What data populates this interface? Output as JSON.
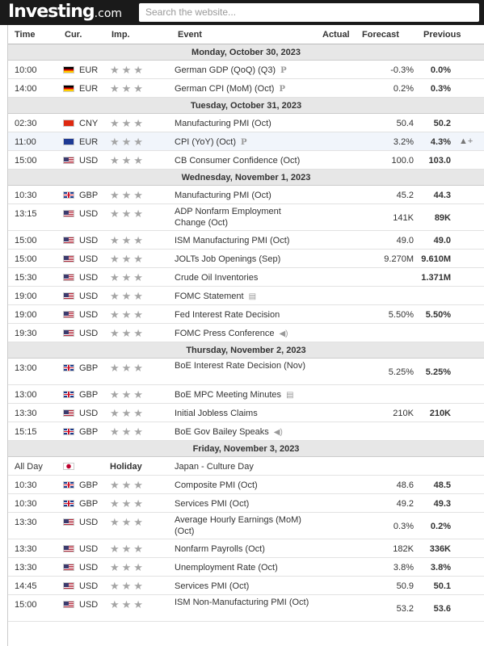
{
  "header": {
    "logo_main": "Investing",
    "logo_suffix": ".com",
    "search_placeholder": "Search the website..."
  },
  "columns": {
    "time": "Time",
    "currency": "Cur.",
    "importance": "Imp.",
    "event": "Event",
    "actual": "Actual",
    "forecast": "Forecast",
    "previous": "Previous"
  },
  "days": [
    {
      "date": "Monday, October 30, 2023",
      "rows": [
        {
          "time": "10:00",
          "flag": "de",
          "cur": "EUR",
          "stars": "★★★",
          "event": "German GDP (QoQ) (Q3)",
          "icon": "P",
          "actual": "",
          "forecast": "-0.3%",
          "previous": "0.0%"
        },
        {
          "time": "14:00",
          "flag": "de",
          "cur": "EUR",
          "stars": "★★★",
          "event": "German CPI (MoM) (Oct)",
          "icon": "P",
          "actual": "",
          "forecast": "0.2%",
          "previous": "0.3%"
        }
      ]
    },
    {
      "date": "Tuesday, October 31, 2023",
      "rows": [
        {
          "time": "02:30",
          "flag": "cn",
          "cur": "CNY",
          "stars": "★★★",
          "event": "Manufacturing PMI (Oct)",
          "icon": "",
          "actual": "",
          "forecast": "50.4",
          "previous": "50.2"
        },
        {
          "time": "11:00",
          "flag": "eu",
          "cur": "EUR",
          "stars": "★★★",
          "event": "CPI (YoY) (Oct)",
          "icon": "P",
          "actual": "",
          "forecast": "3.2%",
          "previous": "4.3%",
          "highlight": true,
          "alert": "▲+"
        },
        {
          "time": "15:00",
          "flag": "us",
          "cur": "USD",
          "stars": "★★★",
          "event": "CB Consumer Confidence (Oct)",
          "icon": "",
          "actual": "",
          "forecast": "100.0",
          "previous": "103.0"
        }
      ]
    },
    {
      "date": "Wednesday, November 1, 2023",
      "rows": [
        {
          "time": "10:30",
          "flag": "gb",
          "cur": "GBP",
          "stars": "★★★",
          "event": "Manufacturing PMI (Oct)",
          "icon": "",
          "actual": "",
          "forecast": "45.2",
          "previous": "44.3"
        },
        {
          "time": "13:15",
          "flag": "us",
          "cur": "USD",
          "stars": "★★★",
          "event": "ADP Nonfarm Employment Change (Oct)",
          "icon": "",
          "actual": "",
          "forecast": "141K",
          "previous": "89K",
          "tall": true
        },
        {
          "time": "15:00",
          "flag": "us",
          "cur": "USD",
          "stars": "★★★",
          "event": "ISM Manufacturing PMI (Oct)",
          "icon": "",
          "actual": "",
          "forecast": "49.0",
          "previous": "49.0"
        },
        {
          "time": "15:00",
          "flag": "us",
          "cur": "USD",
          "stars": "★★★",
          "event": "JOLTs Job Openings (Sep)",
          "icon": "",
          "actual": "",
          "forecast": "9.270M",
          "previous": "9.610M"
        },
        {
          "time": "15:30",
          "flag": "us",
          "cur": "USD",
          "stars": "★★★",
          "event": "Crude Oil Inventories",
          "icon": "",
          "actual": "",
          "forecast": "",
          "previous": "1.371M"
        },
        {
          "time": "19:00",
          "flag": "us",
          "cur": "USD",
          "stars": "★★★",
          "event": "FOMC Statement",
          "icon": "▤",
          "actual": "",
          "forecast": "",
          "previous": ""
        },
        {
          "time": "19:00",
          "flag": "us",
          "cur": "USD",
          "stars": "★★★",
          "event": "Fed Interest Rate Decision",
          "icon": "",
          "actual": "",
          "forecast": "5.50%",
          "previous": "5.50%"
        },
        {
          "time": "19:30",
          "flag": "us",
          "cur": "USD",
          "stars": "★★★",
          "event": "FOMC Press Conference",
          "icon": "◀)",
          "actual": "",
          "forecast": "",
          "previous": ""
        }
      ]
    },
    {
      "date": "Thursday, November 2, 2023",
      "rows": [
        {
          "time": "13:00",
          "flag": "gb",
          "cur": "GBP",
          "stars": "★★★",
          "event": "BoE Interest Rate Decision (Nov)",
          "icon": "",
          "actual": "",
          "forecast": "5.25%",
          "previous": "5.25%",
          "tall": true
        },
        {
          "time": "13:00",
          "flag": "gb",
          "cur": "GBP",
          "stars": "★★★",
          "event": "BoE MPC Meeting Minutes",
          "icon": "▤",
          "actual": "",
          "forecast": "",
          "previous": ""
        },
        {
          "time": "13:30",
          "flag": "us",
          "cur": "USD",
          "stars": "★★★",
          "event": "Initial Jobless Claims",
          "icon": "",
          "actual": "",
          "forecast": "210K",
          "previous": "210K"
        },
        {
          "time": "15:15",
          "flag": "gb",
          "cur": "GBP",
          "stars": "★★★",
          "event": "BoE Gov Bailey Speaks",
          "icon": "◀)",
          "actual": "",
          "forecast": "",
          "previous": ""
        }
      ]
    },
    {
      "date": "Friday, November 3, 2023",
      "rows": [
        {
          "time": "All Day",
          "flag": "jp",
          "cur": "",
          "stars": "",
          "holiday": "Holiday",
          "event": "Japan - Culture Day",
          "icon": "",
          "actual": "",
          "forecast": "",
          "previous": ""
        },
        {
          "time": "10:30",
          "flag": "gb",
          "cur": "GBP",
          "stars": "★★★",
          "event": "Composite PMI (Oct)",
          "icon": "",
          "actual": "",
          "forecast": "48.6",
          "previous": "48.5"
        },
        {
          "time": "10:30",
          "flag": "gb",
          "cur": "GBP",
          "stars": "★★★",
          "event": "Services PMI (Oct)",
          "icon": "",
          "actual": "",
          "forecast": "49.2",
          "previous": "49.3"
        },
        {
          "time": "13:30",
          "flag": "us",
          "cur": "USD",
          "stars": "★★★",
          "event": "Average Hourly Earnings (MoM) (Oct)",
          "icon": "",
          "actual": "",
          "forecast": "0.3%",
          "previous": "0.2%",
          "tall": true
        },
        {
          "time": "13:30",
          "flag": "us",
          "cur": "USD",
          "stars": "★★★",
          "event": "Nonfarm Payrolls (Oct)",
          "icon": "",
          "actual": "",
          "forecast": "182K",
          "previous": "336K"
        },
        {
          "time": "13:30",
          "flag": "us",
          "cur": "USD",
          "stars": "★★★",
          "event": "Unemployment Rate (Oct)",
          "icon": "",
          "actual": "",
          "forecast": "3.8%",
          "previous": "3.8%"
        },
        {
          "time": "14:45",
          "flag": "us",
          "cur": "USD",
          "stars": "★★★",
          "event": "Services PMI (Oct)",
          "icon": "",
          "actual": "",
          "forecast": "50.9",
          "previous": "50.1"
        },
        {
          "time": "15:00",
          "flag": "us",
          "cur": "USD",
          "stars": "★★★",
          "event": "ISM Non-Manufacturing PMI (Oct)",
          "icon": "",
          "actual": "",
          "forecast": "53.2",
          "previous": "53.6",
          "tall": true
        }
      ]
    }
  ]
}
